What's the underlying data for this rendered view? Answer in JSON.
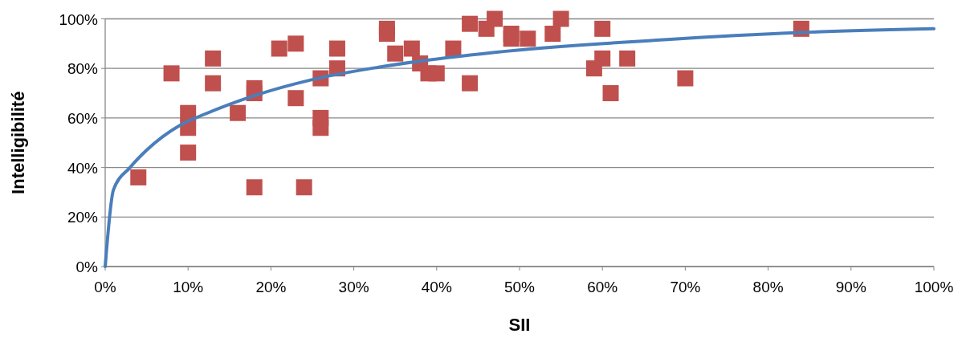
{
  "chart_data": {
    "type": "scatter",
    "xlabel": "SII",
    "ylabel": "Intelligibilité",
    "xlim": [
      0,
      100
    ],
    "ylim": [
      0,
      100
    ],
    "xticks": [
      {
        "value": 0,
        "label": "0%"
      },
      {
        "value": 10,
        "label": "10%"
      },
      {
        "value": 20,
        "label": "20%"
      },
      {
        "value": 30,
        "label": "30%"
      },
      {
        "value": 40,
        "label": "40%"
      },
      {
        "value": 50,
        "label": "50%"
      },
      {
        "value": 60,
        "label": "60%"
      },
      {
        "value": 70,
        "label": "70%"
      },
      {
        "value": 80,
        "label": "80%"
      },
      {
        "value": 90,
        "label": "90%"
      },
      {
        "value": 100,
        "label": "100%"
      }
    ],
    "yticks": [
      {
        "value": 0,
        "label": "0%"
      },
      {
        "value": 20,
        "label": "20%"
      },
      {
        "value": 40,
        "label": "40%"
      },
      {
        "value": 60,
        "label": "60%"
      },
      {
        "value": 80,
        "label": "80%"
      },
      {
        "value": 100,
        "label": "100%"
      }
    ],
    "grid": "y",
    "series": [
      {
        "marker": "square",
        "color": "#c0504d",
        "x": [
          4,
          8,
          10,
          10,
          10,
          13,
          13,
          16,
          18,
          18,
          18,
          21,
          23,
          23,
          24,
          26,
          26,
          26,
          28,
          28,
          34,
          34,
          35,
          37,
          38,
          39,
          40,
          42,
          44,
          44,
          46,
          47,
          49,
          49,
          51,
          54,
          55,
          59,
          60,
          60,
          61,
          63,
          70,
          84
        ],
        "values": [
          36,
          78,
          62,
          56,
          46,
          84,
          74,
          62,
          72,
          70,
          32,
          88,
          90,
          68,
          32,
          76,
          60,
          56,
          88,
          80,
          96,
          94,
          86,
          88,
          82,
          78,
          78,
          88,
          98,
          74,
          96,
          100,
          94,
          92,
          92,
          94,
          100,
          80,
          96,
          84,
          70,
          84,
          76,
          96
        ]
      },
      {
        "type": "line",
        "color": "#4a7ebb",
        "x": [
          0,
          1,
          3,
          5,
          9,
          12,
          18,
          25,
          33,
          47,
          67,
          84,
          100
        ],
        "values": [
          0,
          31,
          40,
          47,
          57,
          61.5,
          69,
          75.5,
          80.5,
          86.5,
          91.5,
          94.5,
          96
        ]
      }
    ]
  }
}
